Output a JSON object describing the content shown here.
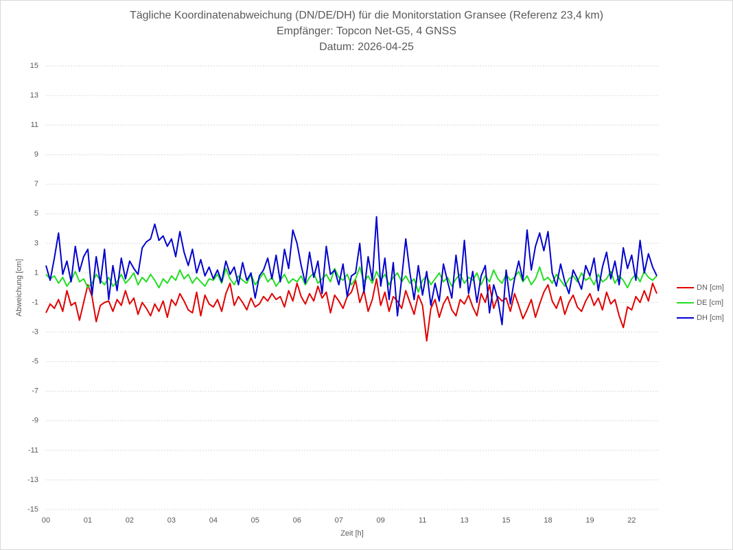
{
  "chart_data": {
    "type": "line",
    "title": "Tägliche Koordinatenabweichung (DN/DE/DH) für die Monitorstation Gransee (Referenz 23,4 km)",
    "subtitle": [
      "Empfänger: Topcon Net-G5, 4 GNSS",
      "Datum: 2026-04-25"
    ],
    "x_label": "Zeit [h]",
    "y_label": "Abweichung [cm]",
    "categories": [
      "00",
      null,
      null,
      null,
      null,
      null,
      null,
      null,
      null,
      null,
      "01",
      null,
      null,
      null,
      null,
      null,
      null,
      null,
      null,
      null,
      "02",
      null,
      null,
      null,
      null,
      null,
      null,
      null,
      null,
      null,
      "03",
      null,
      null,
      null,
      null,
      null,
      null,
      null,
      null,
      null,
      "04",
      null,
      null,
      null,
      null,
      null,
      null,
      null,
      null,
      null,
      "05",
      null,
      null,
      null,
      null,
      null,
      null,
      null,
      null,
      null,
      "06",
      null,
      null,
      null,
      null,
      null,
      null,
      null,
      null,
      null,
      "07",
      null,
      null,
      null,
      null,
      null,
      null,
      null,
      null,
      null,
      "09",
      null,
      null,
      null,
      null,
      null,
      null,
      null,
      null,
      null,
      "11",
      null,
      null,
      null,
      null,
      null,
      null,
      null,
      null,
      null,
      "13",
      null,
      null,
      null,
      null,
      null,
      null,
      null,
      null,
      null,
      "15",
      null,
      null,
      null,
      null,
      null,
      null,
      null,
      null,
      null,
      "18",
      null,
      null,
      null,
      null,
      null,
      null,
      null,
      null,
      null,
      "19",
      null,
      null,
      null,
      null,
      null,
      null,
      null,
      null,
      null,
      "22",
      null,
      null,
      null,
      null,
      null,
      null
    ],
    "series": [
      {
        "name": "DN [cm]",
        "color": "#e00000",
        "values": [
          -1.7,
          -1.1,
          -1.4,
          -0.8,
          -1.6,
          -0.2,
          -1.2,
          -1.0,
          -2.2,
          -1.0,
          0.2,
          -0.6,
          -2.3,
          -1.2,
          -1.0,
          -0.9,
          -1.6,
          -0.8,
          -1.2,
          -0.2,
          -1.1,
          -0.7,
          -1.8,
          -1.0,
          -1.4,
          -1.9,
          -1.1,
          -1.6,
          -0.9,
          -2.0,
          -0.8,
          -1.2,
          -0.4,
          -0.9,
          -1.5,
          -1.7,
          -0.3,
          -1.9,
          -0.5,
          -1.1,
          -1.3,
          -0.8,
          -1.6,
          -0.4,
          0.3,
          -1.2,
          -0.6,
          -1.0,
          -1.5,
          -0.7,
          -1.3,
          -1.1,
          -0.6,
          -0.9,
          -0.4,
          -0.8,
          -0.6,
          -1.3,
          -0.2,
          -0.9,
          0.3,
          -0.6,
          -1.1,
          -0.4,
          -0.9,
          0.1,
          -0.7,
          -0.3,
          -1.7,
          -0.5,
          -0.9,
          -1.4,
          -0.6,
          -0.3,
          0.5,
          -1.0,
          -0.2,
          -1.6,
          -0.8,
          0.6,
          -1.2,
          -0.3,
          -1.6,
          -0.6,
          -0.9,
          -1.4,
          -0.2,
          -1.0,
          -1.8,
          -0.5,
          -1.2,
          -3.6,
          -1.4,
          -0.8,
          -2.0,
          -1.1,
          -0.6,
          -1.5,
          -1.9,
          -0.8,
          -1.1,
          -0.5,
          -1.3,
          -1.9,
          -0.4,
          -1.0,
          0.2,
          -1.4,
          -0.6,
          -0.9,
          -0.7,
          -1.6,
          -0.4,
          -1.2,
          -2.1,
          -1.5,
          -0.8,
          -2.0,
          -1.1,
          -0.3,
          0.2,
          -0.9,
          -1.4,
          -0.6,
          -1.8,
          -1.0,
          -0.5,
          -1.3,
          -1.6,
          -0.9,
          -0.4,
          -1.2,
          -0.7,
          -1.5,
          -0.3,
          -1.1,
          -0.8,
          -1.9,
          -2.7,
          -1.3,
          -1.5,
          -0.6,
          -1.0,
          -0.2,
          -0.9,
          0.3,
          -0.4
        ]
      },
      {
        "name": "DE [cm]",
        "color": "#22dd22",
        "values": [
          0.9,
          0.6,
          0.8,
          0.3,
          0.7,
          0.1,
          0.5,
          1.1,
          0.4,
          0.6,
          0.0,
          0.3,
          0.9,
          0.5,
          0.2,
          0.7,
          0.1,
          0.4,
          0.9,
          0.3,
          0.6,
          1.0,
          0.2,
          0.7,
          0.4,
          0.9,
          0.5,
          0.0,
          0.6,
          0.3,
          0.8,
          0.5,
          1.2,
          0.6,
          0.9,
          0.3,
          0.7,
          0.4,
          0.1,
          0.6,
          0.5,
          0.9,
          0.3,
          1.3,
          0.6,
          0.2,
          0.8,
          0.5,
          0.3,
          0.9,
          0.2,
          0.6,
          1.0,
          0.4,
          0.7,
          0.1,
          0.5,
          0.9,
          0.3,
          0.6,
          0.4,
          0.8,
          0.2,
          0.7,
          1.0,
          0.3,
          0.6,
          0.9,
          0.4,
          1.3,
          0.7,
          0.5,
          0.9,
          0.2,
          0.6,
          1.4,
          0.4,
          0.8,
          0.3,
          1.1,
          0.5,
          0.9,
          0.2,
          0.7,
          1.0,
          0.4,
          0.8,
          0.3,
          0.6,
          -0.3,
          0.5,
          0.8,
          0.2,
          0.6,
          1.0,
          0.4,
          0.7,
          0.1,
          0.6,
          0.9,
          0.3,
          0.7,
          0.5,
          1.0,
          0.2,
          0.8,
          0.4,
          1.2,
          0.6,
          0.3,
          0.9,
          0.5,
          0.7,
          1.1,
          0.4,
          0.8,
          0.2,
          0.6,
          1.4,
          0.5,
          0.7,
          0.3,
          0.9,
          0.5,
          0.1,
          0.6,
          0.8,
          0.4,
          1.0,
          0.5,
          0.7,
          0.2,
          0.9,
          0.4,
          0.6,
          1.1,
          0.3,
          0.8,
          0.5,
          0.0,
          0.6,
          0.9,
          0.4,
          1.1,
          0.7,
          0.5,
          0.8
        ]
      },
      {
        "name": "DH [cm]",
        "color": "#0000cc",
        "values": [
          1.5,
          0.5,
          2.0,
          3.7,
          0.9,
          1.8,
          0.4,
          2.8,
          1.1,
          2.1,
          2.6,
          -0.5,
          2.1,
          0.3,
          2.6,
          -0.8,
          1.5,
          -0.2,
          2.0,
          0.6,
          1.8,
          1.3,
          0.9,
          2.7,
          3.1,
          3.3,
          4.3,
          3.2,
          3.5,
          2.8,
          3.3,
          2.1,
          3.8,
          2.4,
          1.5,
          2.6,
          1.0,
          1.9,
          0.8,
          1.4,
          0.6,
          1.2,
          0.4,
          1.8,
          0.9,
          1.4,
          0.2,
          1.7,
          0.5,
          1.0,
          -0.7,
          0.8,
          1.2,
          2.0,
          0.6,
          2.2,
          0.4,
          2.6,
          1.3,
          3.9,
          3.0,
          1.5,
          0.3,
          2.4,
          0.7,
          1.8,
          -0.4,
          2.8,
          0.9,
          1.2,
          0.2,
          1.6,
          -0.6,
          0.8,
          1.0,
          3.0,
          -0.3,
          2.1,
          0.5,
          4.8,
          0.1,
          2.0,
          -0.8,
          1.7,
          -1.9,
          0.6,
          3.3,
          1.0,
          -0.8,
          1.5,
          -0.5,
          1.1,
          -1.2,
          0.3,
          -0.9,
          1.6,
          0.4,
          -0.7,
          2.2,
          0.0,
          3.2,
          -0.4,
          1.1,
          -1.0,
          0.8,
          1.5,
          -1.7,
          0.2,
          -0.8,
          -2.5,
          1.2,
          -1.1,
          0.6,
          1.8,
          0.5,
          3.9,
          1.2,
          2.8,
          3.7,
          2.5,
          3.8,
          1.0,
          0.1,
          1.6,
          0.4,
          -0.4,
          1.2,
          0.6,
          -0.1,
          1.5,
          0.8,
          2.0,
          -0.2,
          1.4,
          2.4,
          0.6,
          1.8,
          0.2,
          2.7,
          1.3,
          2.2,
          0.5,
          3.2,
          1.0,
          2.3,
          1.4,
          0.8
        ]
      }
    ],
    "ylim": [
      -15,
      15
    ],
    "yticks": [
      -15,
      -13,
      -11,
      -9,
      -7,
      -5,
      -3,
      -1,
      1,
      3,
      5,
      7,
      9,
      11,
      13,
      15
    ],
    "grid": true,
    "legend": "right"
  }
}
